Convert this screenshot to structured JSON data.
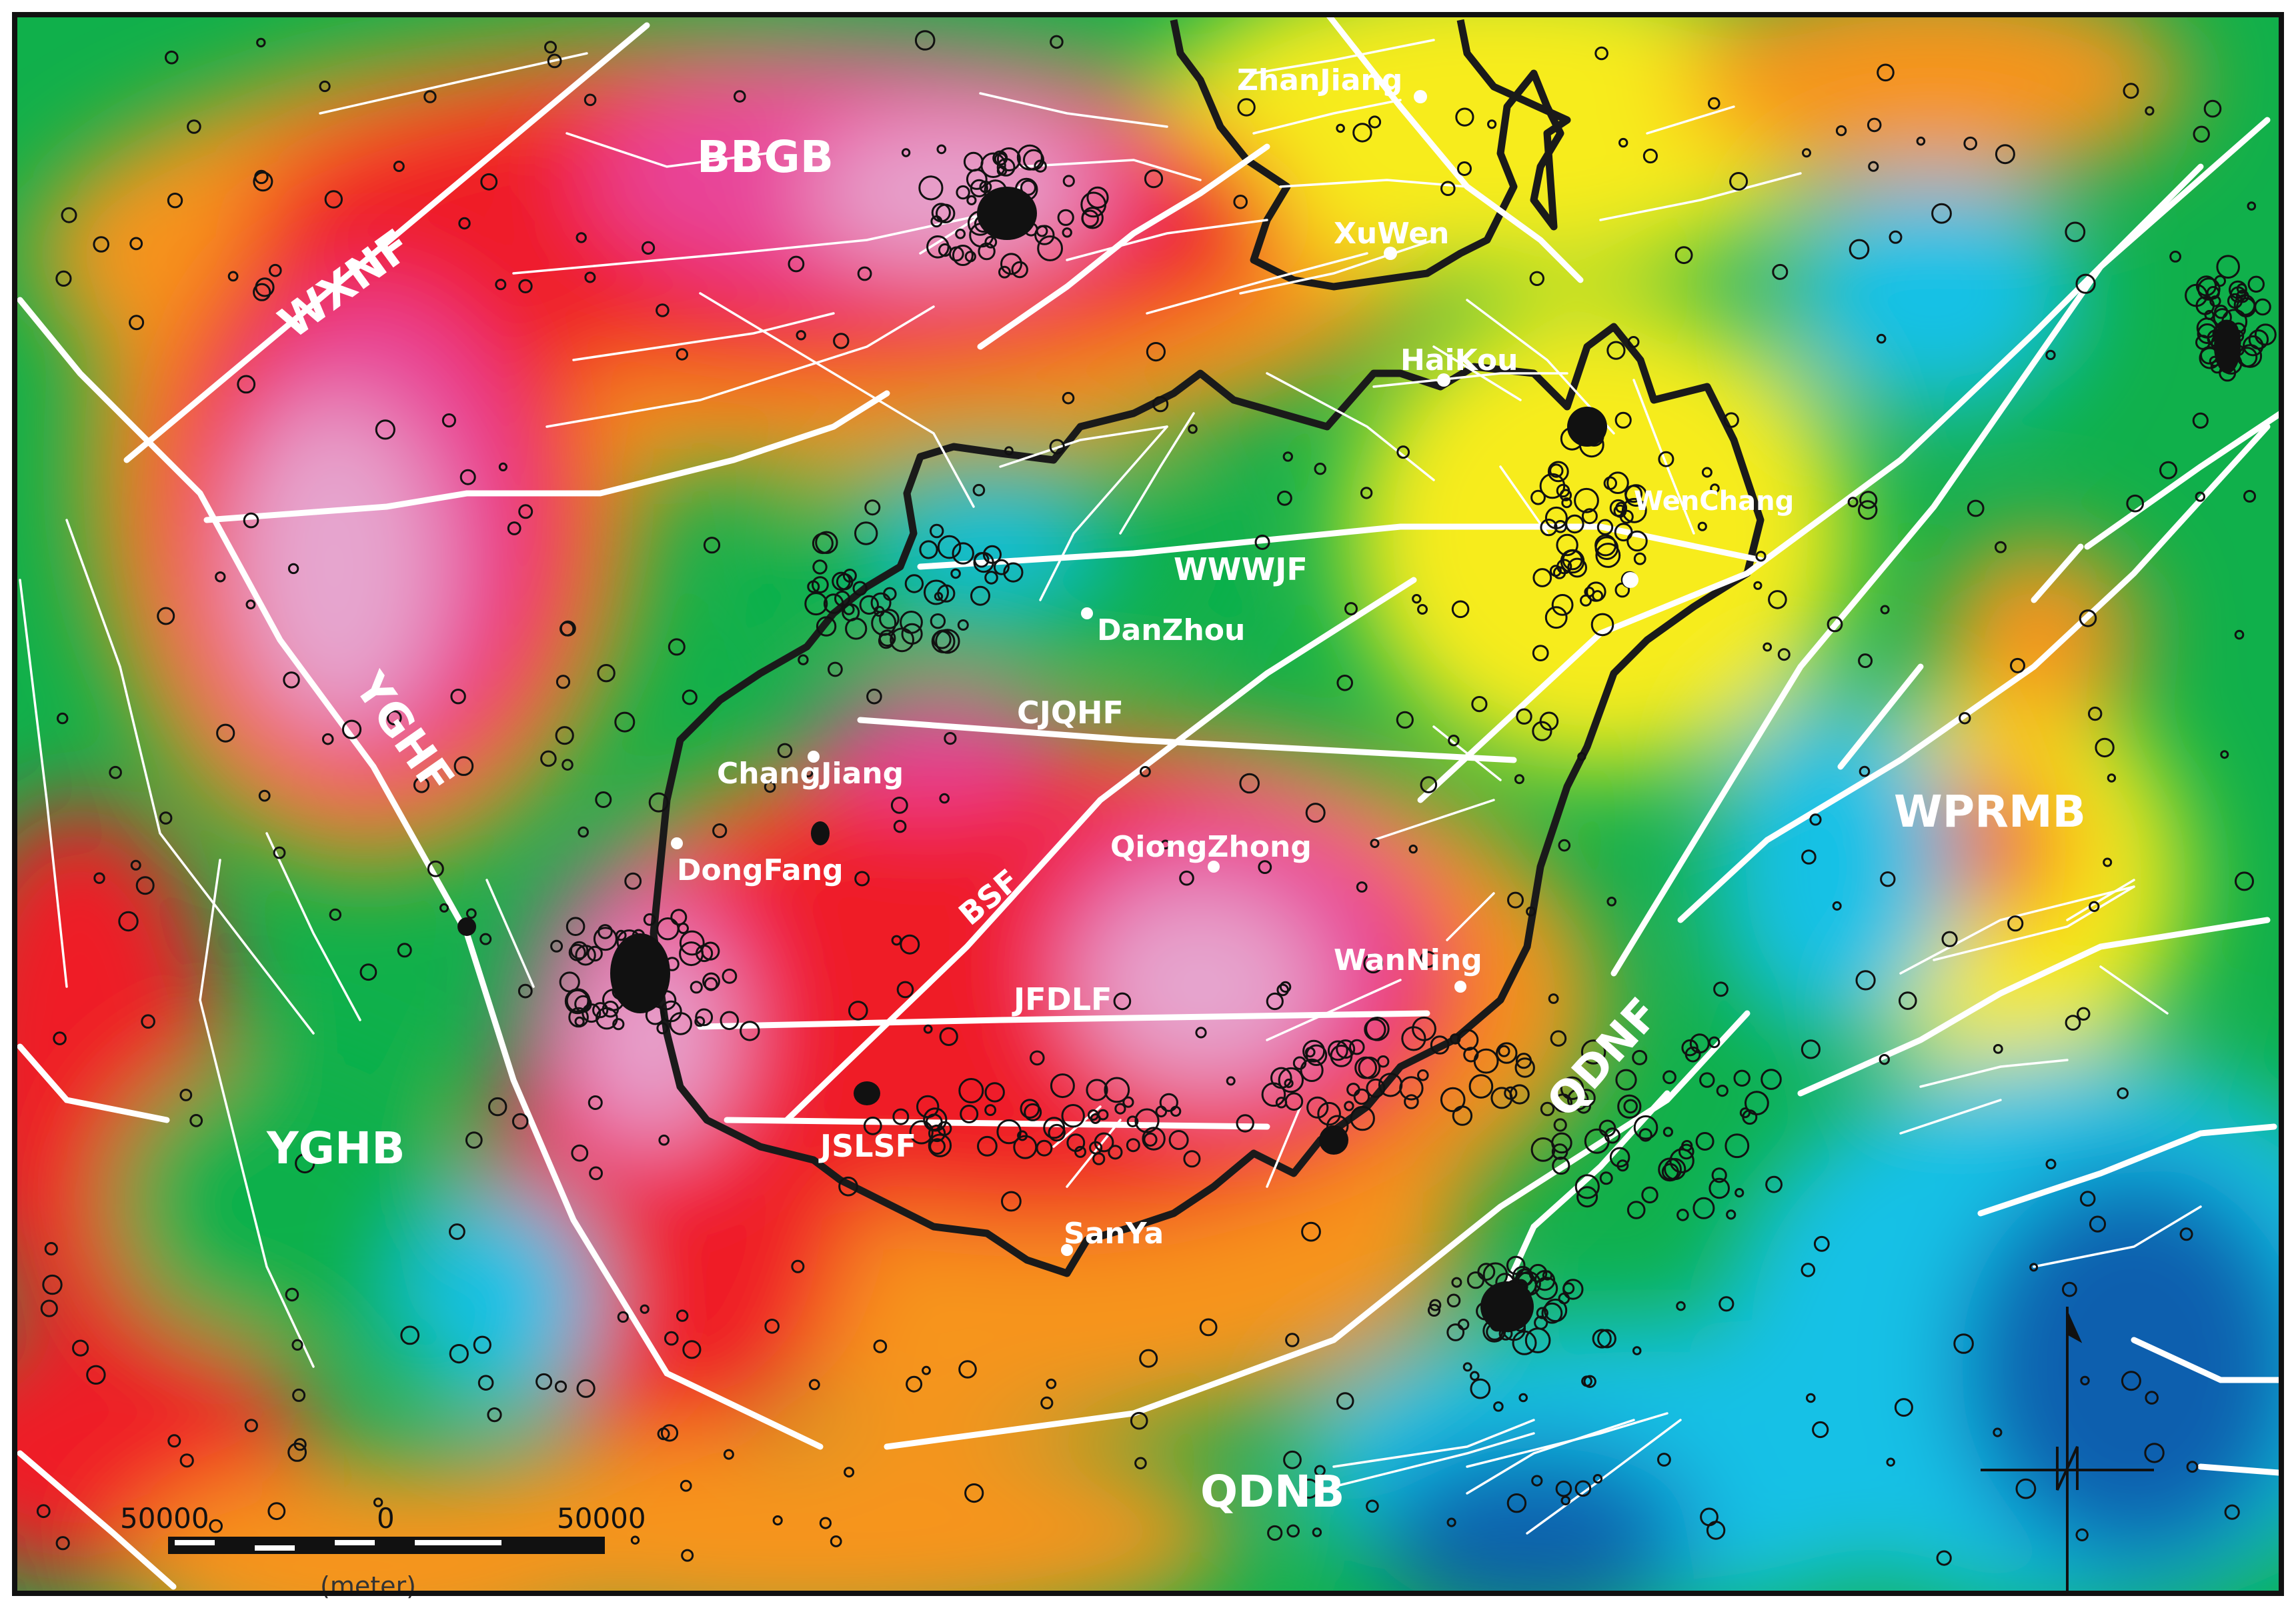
{
  "basins": {
    "bbgb": "BBGB",
    "yghb": "YGHB",
    "wprmb": "WPRMB",
    "qdnb": "QDNB"
  },
  "faults": {
    "wxnf": "WXNF",
    "yghf": "YGHF",
    "wwwjf": "WWWJF",
    "cjqhf": "CJQHF",
    "bsf": "BSF",
    "jfdlf": "JFDLF",
    "jslsf": "JSLSF",
    "qdnf": "QDNF"
  },
  "cities": {
    "zhanjiang": "ZhanJiang",
    "xuwen": "XuWen",
    "haikou": "HaiKou",
    "wenchang": "WenChang",
    "danzhou": "DanZhou",
    "changjiang": "ChangJiang",
    "dongfang": "DongFang",
    "qiongzhong": "QiongZhong",
    "wanning": "WanNing",
    "sanya": "SanYa"
  },
  "scale_bar": {
    "left": "50000",
    "middle": "0",
    "right": "50000",
    "unit": "(meter)"
  },
  "colors": {
    "pink_light": "#e6a6cf",
    "magenta": "#e8459a",
    "red": "#ef1b25",
    "orange": "#f7941d",
    "yellow": "#f7ec1f",
    "green": "#10b04b",
    "cyan": "#19c1e6",
    "blue": "#0b5fae",
    "fault_line": "#ffffff",
    "coast_line": "#1a1a1a"
  },
  "icons": [
    "earthquake-circle-icon",
    "north-arrow-icon"
  ]
}
